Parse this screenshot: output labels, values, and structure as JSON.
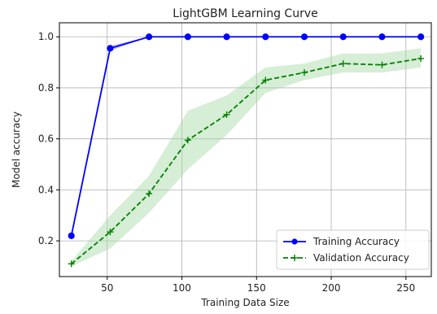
{
  "chart_data": {
    "type": "line",
    "title": "LightGBM Learning Curve",
    "xlabel": "Training Data Size",
    "ylabel": "Model accuracy",
    "xlim": [
      18,
      267
    ],
    "ylim": [
      0.06,
      1.055
    ],
    "xticks": [
      50,
      100,
      150,
      200,
      250
    ],
    "yticks": [
      0.2,
      0.4,
      0.6,
      0.8,
      1.0
    ],
    "xtick_labels": [
      "50",
      "100",
      "150",
      "200",
      "250"
    ],
    "ytick_labels": [
      "0.2",
      "0.4",
      "0.6",
      "0.8",
      "1.0"
    ],
    "grid": true,
    "legend_position": "lower-right",
    "x": [
      26,
      52,
      78,
      104,
      130,
      156,
      182,
      208,
      234,
      260
    ],
    "series": [
      {
        "name": "Training Accuracy",
        "color": "#0000ff",
        "linestyle": "solid",
        "marker": "circle",
        "values": [
          0.22,
          0.955,
          1.0,
          1.0,
          1.0,
          1.0,
          1.0,
          1.0,
          1.0,
          1.0
        ],
        "band_lower": [
          0.21,
          0.945,
          1.0,
          1.0,
          1.0,
          1.0,
          1.0,
          1.0,
          1.0,
          1.0
        ],
        "band_upper": [
          0.23,
          0.965,
          1.0,
          1.0,
          1.0,
          1.0,
          1.0,
          1.0,
          1.0,
          1.0
        ],
        "band_color": "#8080ff"
      },
      {
        "name": "Validation Accuracy",
        "color": "#008000",
        "linestyle": "dashed",
        "marker": "plus",
        "values": [
          0.11,
          0.235,
          0.385,
          0.595,
          0.695,
          0.83,
          0.86,
          0.895,
          0.89,
          0.915
        ],
        "band_lower": [
          0.1,
          0.17,
          0.31,
          0.48,
          0.615,
          0.78,
          0.83,
          0.86,
          0.86,
          0.88
        ],
        "band_upper": [
          0.12,
          0.3,
          0.455,
          0.71,
          0.77,
          0.88,
          0.895,
          0.935,
          0.935,
          0.955
        ],
        "band_color": "#a3d6a3"
      }
    ]
  }
}
